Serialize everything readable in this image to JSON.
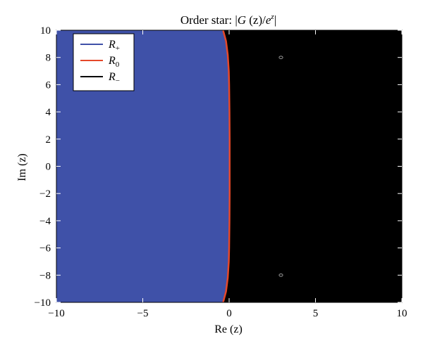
{
  "chart_data": {
    "type": "area",
    "title": "Order star: |G (z)/e^z|",
    "title_parts": {
      "prefix": "Order star: |",
      "g": "G",
      "mid": " (z)/",
      "e": "e",
      "z": "z",
      "suffix": "|"
    },
    "xlabel": "Re (z)",
    "ylabel": "Im (z)",
    "xlim": [
      -10,
      10
    ],
    "ylim": [
      -10,
      10
    ],
    "xticks": [
      -10,
      -5,
      0,
      5,
      10
    ],
    "yticks": [
      -10,
      -8,
      -6,
      -4,
      -2,
      0,
      2,
      4,
      6,
      8,
      10
    ],
    "xtick_labels": [
      "−10",
      "−5",
      "0",
      "5",
      "10"
    ],
    "ytick_labels": [
      "−10",
      "−8",
      "−6",
      "−4",
      "−2",
      "0",
      "2",
      "4",
      "6",
      "8",
      "10"
    ],
    "legend_position": "top-left",
    "grid": false,
    "series": [
      {
        "name": "R+",
        "label": "R",
        "sub": "+",
        "color": "#3f51a8",
        "region": "positive"
      },
      {
        "name": "R0",
        "label": "R",
        "sub": "0",
        "color": "#e5482a",
        "region": "boundary"
      },
      {
        "name": "R-",
        "label": "R",
        "sub": "−",
        "color": "#000000",
        "region": "negative"
      }
    ],
    "boundary": {
      "points": [
        [
          -0.35,
          -10
        ],
        [
          -0.18,
          -9.2
        ],
        [
          -0.08,
          -8.2
        ],
        [
          -0.02,
          -7
        ],
        [
          0.0,
          -6
        ],
        [
          0.02,
          -4
        ],
        [
          0.03,
          -2
        ],
        [
          0.03,
          0
        ],
        [
          0.03,
          2
        ],
        [
          0.02,
          4
        ],
        [
          0.0,
          6
        ],
        [
          -0.02,
          7
        ],
        [
          -0.08,
          8.2
        ],
        [
          -0.18,
          9.2
        ],
        [
          -0.35,
          10
        ]
      ]
    },
    "poles": [
      {
        "x": 3.0,
        "y": 8.0
      },
      {
        "x": 3.0,
        "y": -8.0
      }
    ]
  }
}
